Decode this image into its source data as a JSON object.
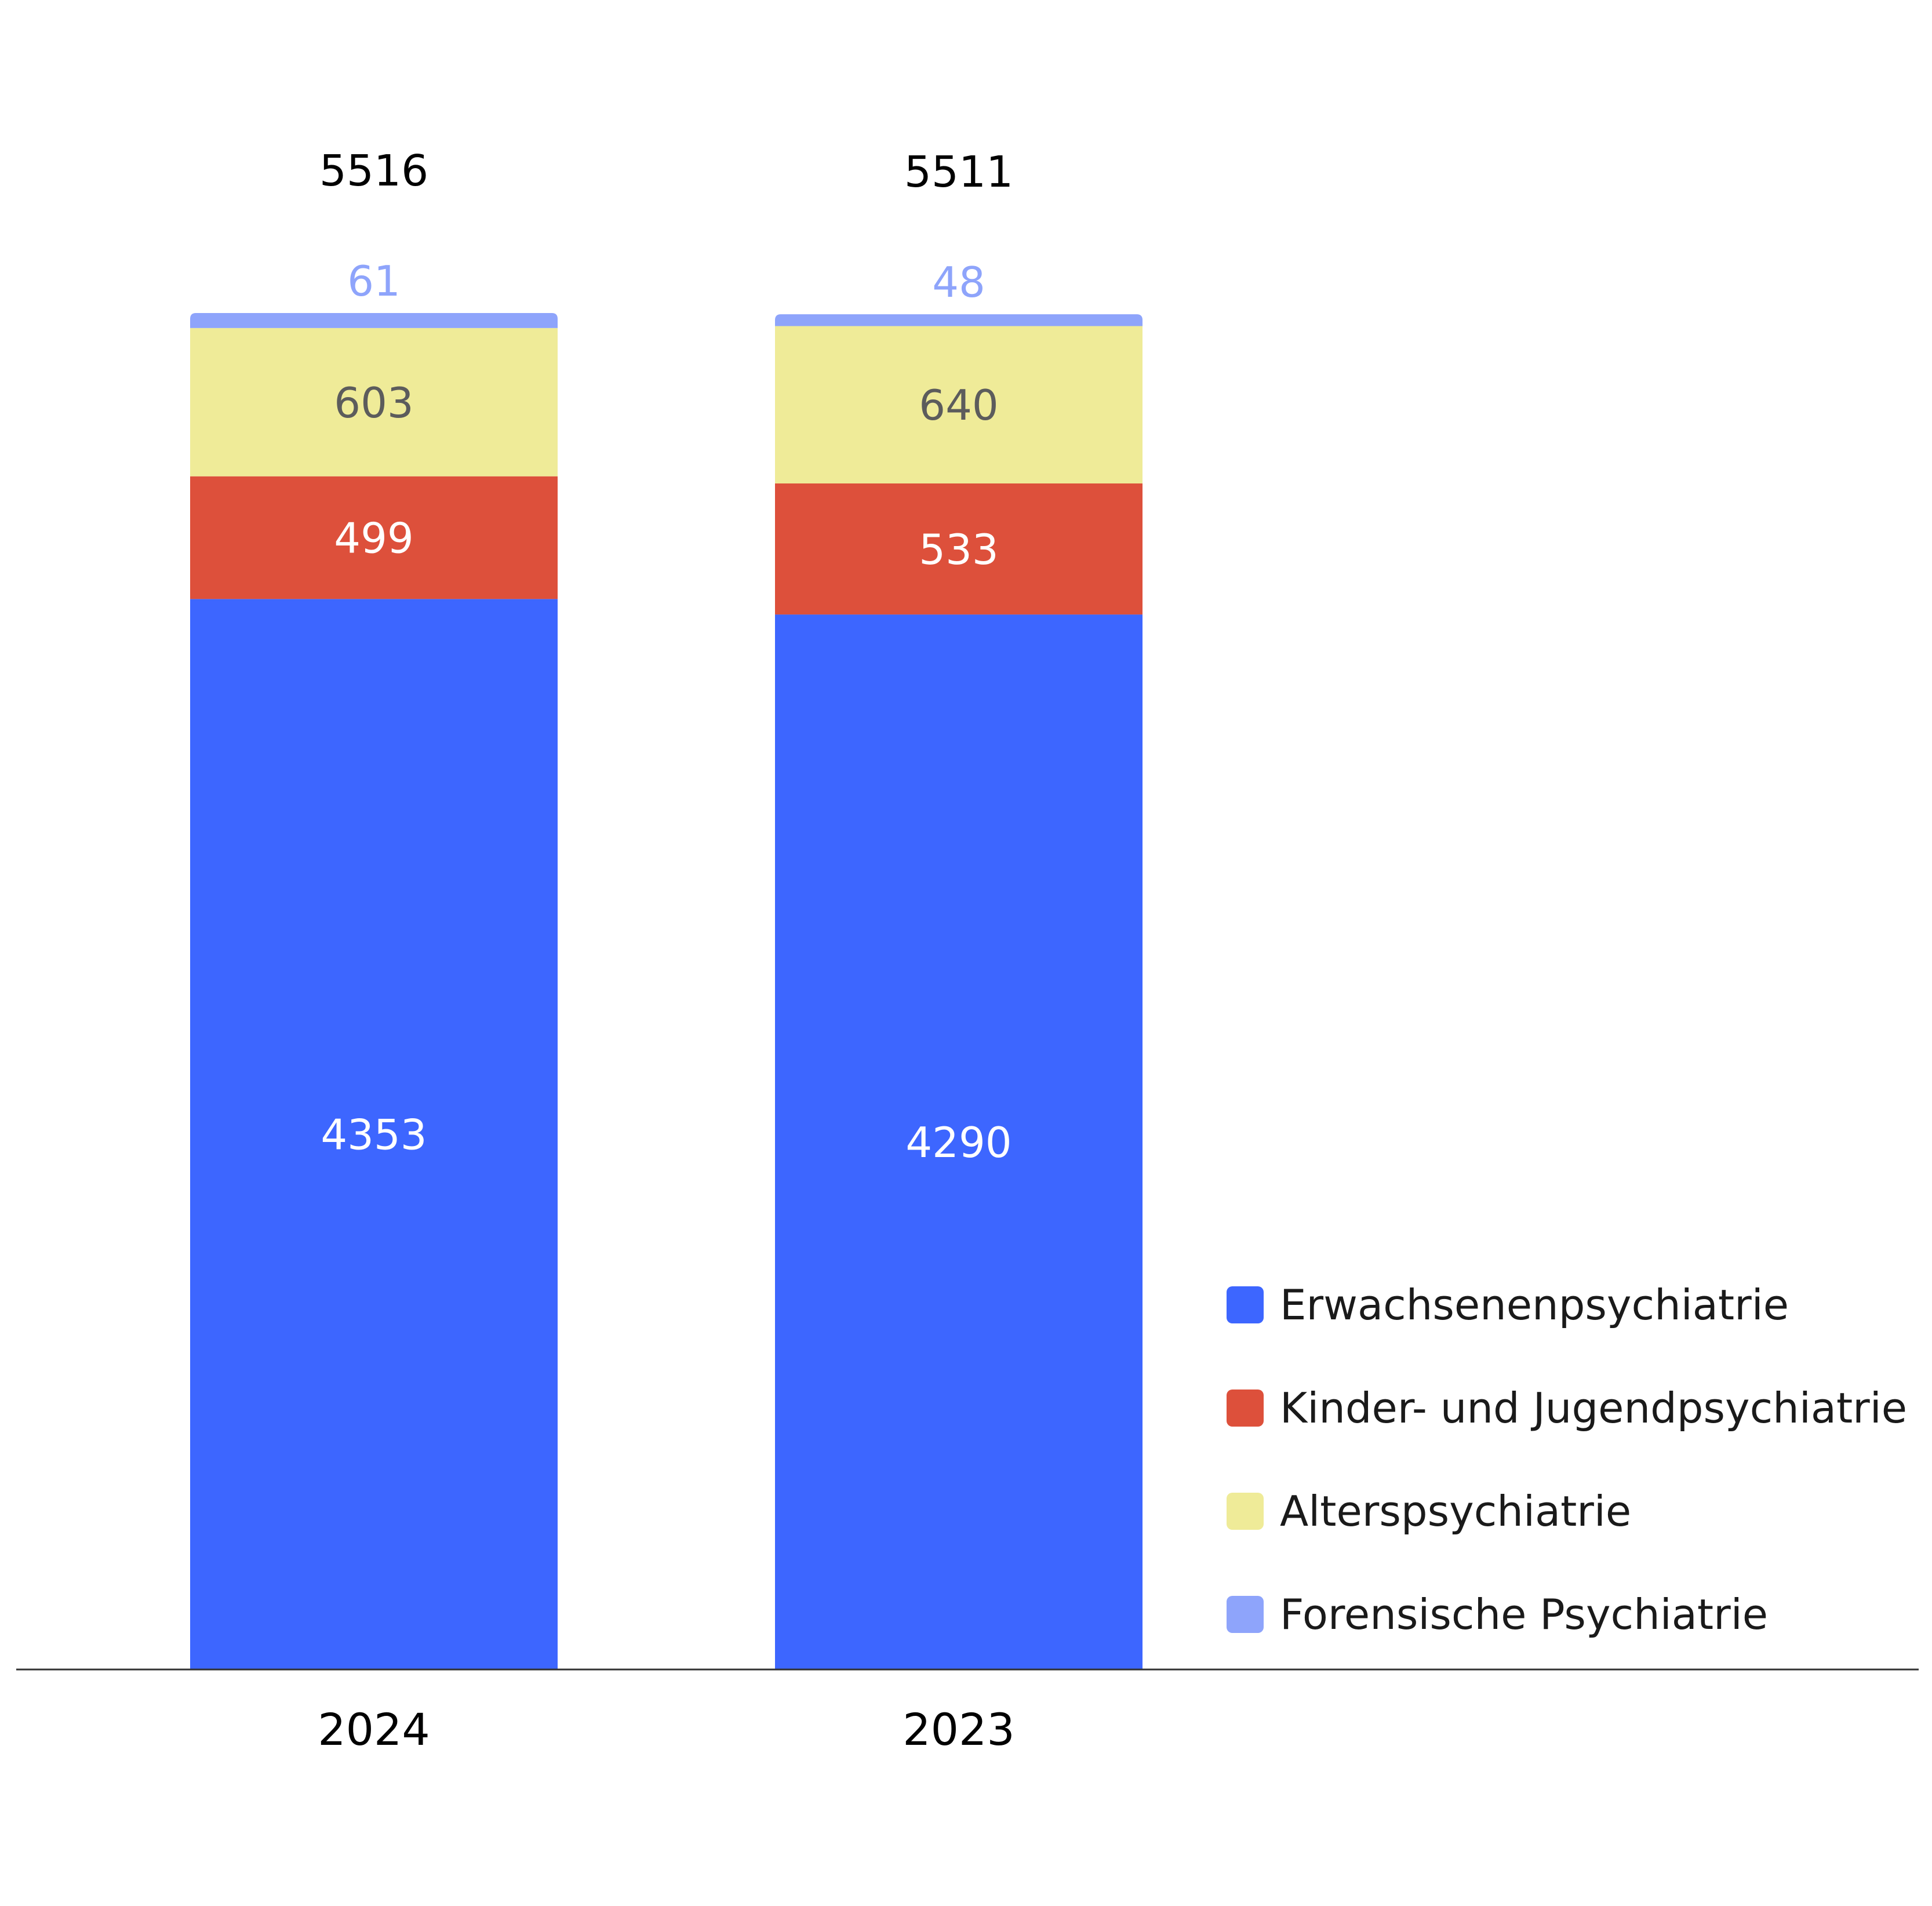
{
  "chart_data": {
    "type": "bar",
    "stacked": true,
    "categories": [
      "2024",
      "2023"
    ],
    "totals": [
      5516,
      5511
    ],
    "series": [
      {
        "name": "Erwachsenenpsychiatrie",
        "values": [
          4353,
          4290
        ],
        "color": "#3d66ff",
        "label_color": "#ffffff"
      },
      {
        "name": "Kinder- und Jugendpsychiatrie",
        "values": [
          499,
          533
        ],
        "color": "#dd503b",
        "label_color": "#ffffff"
      },
      {
        "name": "Alterspsychiatrie",
        "values": [
          603,
          640
        ],
        "color": "#efeb98",
        "label_color": "#5c5c5c"
      },
      {
        "name": "Forensische Psychiatrie",
        "values": [
          61,
          48
        ],
        "color": "#8ea4fb",
        "label_color": "#8ea4fb"
      }
    ],
    "ylim": [
      0,
      5516
    ],
    "grid": false,
    "legend_position": "right",
    "axis_color": "#333333",
    "total_color": "#000000",
    "category_color": "#000000"
  }
}
